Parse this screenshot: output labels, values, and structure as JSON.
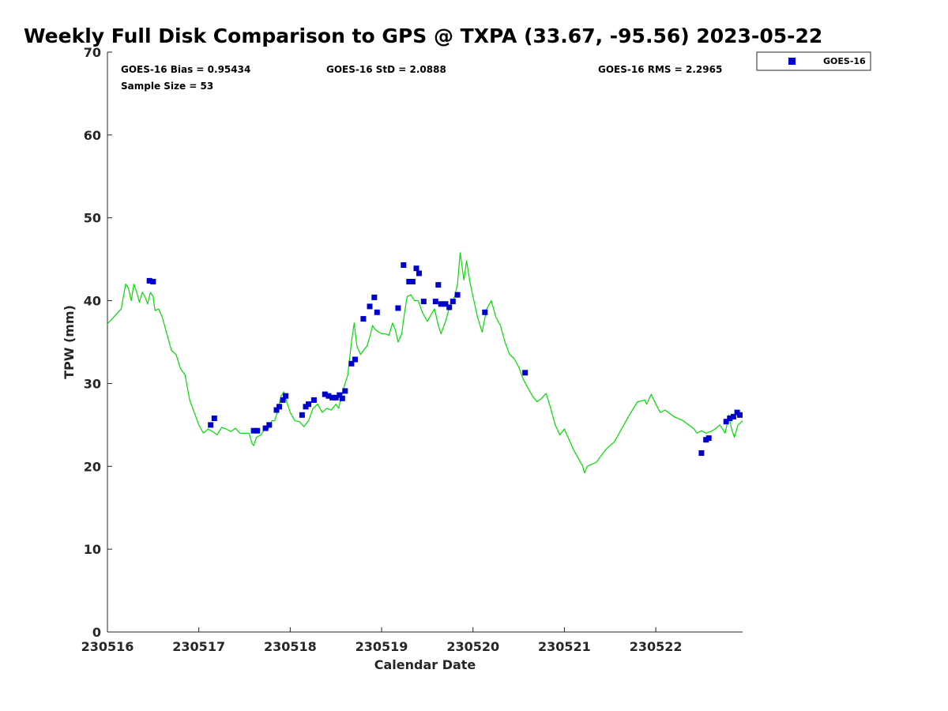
{
  "chart_data": {
    "type": "line",
    "title": "Weekly Full Disk Comparison to GPS @ TXPA (33.67, -95.56) 2023-05-22",
    "xlabel": "Calendar Date",
    "ylabel": "TPW (mm)",
    "xlim": [
      0,
      6.95
    ],
    "ylim": [
      0,
      70
    ],
    "x_ticks": [
      0,
      1,
      2,
      3,
      4,
      5,
      6
    ],
    "x_tick_labels": [
      "230516",
      "230517",
      "230518",
      "230519",
      "230520",
      "230521",
      "230522"
    ],
    "y_ticks": [
      0,
      10,
      20,
      30,
      40,
      50,
      60,
      70
    ],
    "grid": false,
    "legend_position": "top-right, outside axes",
    "stats": {
      "bias": "GOES-16 Bias = 0.95434",
      "std": "GOES-16 StD = 2.0888",
      "rms": "GOES-16 RMS = 2.2965",
      "sample": "Sample Size = 53"
    },
    "series": [
      {
        "kind": "line",
        "color": "#00dd00",
        "points": [
          [
            0,
            37.2
          ],
          [
            0.05,
            37.8
          ],
          [
            0.1,
            38.4
          ],
          [
            0.15,
            39
          ],
          [
            0.2,
            42
          ],
          [
            0.23,
            41.5
          ],
          [
            0.26,
            40
          ],
          [
            0.29,
            42
          ],
          [
            0.32,
            41
          ],
          [
            0.35,
            39.8
          ],
          [
            0.38,
            41
          ],
          [
            0.41,
            40.5
          ],
          [
            0.44,
            39.6
          ],
          [
            0.47,
            41
          ],
          [
            0.5,
            40.5
          ],
          [
            0.52,
            38.8
          ],
          [
            0.56,
            39
          ],
          [
            0.6,
            38
          ],
          [
            0.65,
            36
          ],
          [
            0.7,
            34
          ],
          [
            0.75,
            33.5
          ],
          [
            0.8,
            31.8
          ],
          [
            0.85,
            31
          ],
          [
            0.9,
            28
          ],
          [
            0.95,
            26.5
          ],
          [
            1.0,
            25
          ],
          [
            1.05,
            24
          ],
          [
            1.1,
            24.5
          ],
          [
            1.15,
            24.2
          ],
          [
            1.2,
            23.8
          ],
          [
            1.25,
            24.7
          ],
          [
            1.3,
            24.5
          ],
          [
            1.35,
            24.2
          ],
          [
            1.4,
            24.6
          ],
          [
            1.45,
            24
          ],
          [
            1.5,
            24
          ],
          [
            1.55,
            24
          ],
          [
            1.58,
            22.8
          ],
          [
            1.6,
            22.5
          ],
          [
            1.63,
            23.5
          ],
          [
            1.68,
            23.8
          ],
          [
            1.72,
            24.5
          ],
          [
            1.76,
            24.5
          ],
          [
            1.8,
            25.5
          ],
          [
            1.83,
            25.5
          ],
          [
            1.87,
            27
          ],
          [
            1.9,
            28.5
          ],
          [
            1.93,
            29
          ],
          [
            1.97,
            27.5
          ],
          [
            2.0,
            26.5
          ],
          [
            2.05,
            25.5
          ],
          [
            2.1,
            25.4
          ],
          [
            2.15,
            24.8
          ],
          [
            2.2,
            25.5
          ],
          [
            2.25,
            27
          ],
          [
            2.3,
            27.5
          ],
          [
            2.35,
            26.5
          ],
          [
            2.4,
            27
          ],
          [
            2.45,
            26.8
          ],
          [
            2.5,
            27.5
          ],
          [
            2.53,
            27
          ],
          [
            2.56,
            28.5
          ],
          [
            2.6,
            30
          ],
          [
            2.63,
            31
          ],
          [
            2.67,
            35
          ],
          [
            2.7,
            37.3
          ],
          [
            2.73,
            34.5
          ],
          [
            2.77,
            33.5
          ],
          [
            2.8,
            34
          ],
          [
            2.84,
            34.5
          ],
          [
            2.88,
            36
          ],
          [
            2.9,
            37
          ],
          [
            2.93,
            36.5
          ],
          [
            2.97,
            36.2
          ],
          [
            3.0,
            36
          ],
          [
            3.04,
            36
          ],
          [
            3.08,
            35.8
          ],
          [
            3.12,
            37.3
          ],
          [
            3.15,
            36.5
          ],
          [
            3.18,
            35
          ],
          [
            3.22,
            36
          ],
          [
            3.25,
            38.5
          ],
          [
            3.28,
            40.5
          ],
          [
            3.32,
            40.7
          ],
          [
            3.36,
            40
          ],
          [
            3.4,
            40
          ],
          [
            3.45,
            38.5
          ],
          [
            3.5,
            37.5
          ],
          [
            3.55,
            38.5
          ],
          [
            3.58,
            39
          ],
          [
            3.62,
            37
          ],
          [
            3.65,
            36
          ],
          [
            3.7,
            37.5
          ],
          [
            3.75,
            39.5
          ],
          [
            3.8,
            40.5
          ],
          [
            3.83,
            42
          ],
          [
            3.86,
            45.8
          ],
          [
            3.9,
            42.5
          ],
          [
            3.93,
            44.8
          ],
          [
            3.97,
            42
          ],
          [
            4.0,
            40.5
          ],
          [
            4.05,
            38
          ],
          [
            4.1,
            36.2
          ],
          [
            4.15,
            39
          ],
          [
            4.2,
            40
          ],
          [
            4.25,
            38
          ],
          [
            4.3,
            37
          ],
          [
            4.35,
            35
          ],
          [
            4.4,
            33.5
          ],
          [
            4.45,
            33
          ],
          [
            4.5,
            32
          ],
          [
            4.55,
            30.5
          ],
          [
            4.6,
            29.5
          ],
          [
            4.65,
            28.5
          ],
          [
            4.7,
            27.8
          ],
          [
            4.75,
            28.2
          ],
          [
            4.8,
            28.8
          ],
          [
            4.85,
            27
          ],
          [
            4.9,
            25
          ],
          [
            4.95,
            23.8
          ],
          [
            5.0,
            24.5
          ],
          [
            5.1,
            22
          ],
          [
            5.2,
            20
          ],
          [
            5.22,
            19.2
          ],
          [
            5.25,
            20
          ],
          [
            5.35,
            20.5
          ],
          [
            5.45,
            22
          ],
          [
            5.55,
            23
          ],
          [
            5.6,
            24
          ],
          [
            5.7,
            26
          ],
          [
            5.8,
            27.8
          ],
          [
            5.88,
            28
          ],
          [
            5.9,
            27.5
          ],
          [
            5.95,
            28.7
          ],
          [
            6.0,
            27.5
          ],
          [
            6.05,
            26.5
          ],
          [
            6.1,
            26.8
          ],
          [
            6.2,
            26
          ],
          [
            6.3,
            25.5
          ],
          [
            6.42,
            24.5
          ],
          [
            6.45,
            24
          ],
          [
            6.5,
            24.3
          ],
          [
            6.55,
            24
          ],
          [
            6.6,
            24.2
          ],
          [
            6.65,
            24.5
          ],
          [
            6.7,
            25
          ],
          [
            6.73,
            24.5
          ],
          [
            6.76,
            24
          ],
          [
            6.8,
            26.2
          ],
          [
            6.83,
            24.5
          ],
          [
            6.86,
            23.5
          ],
          [
            6.9,
            25
          ],
          [
            6.95,
            25.5
          ]
        ]
      },
      {
        "name": "GOES-16",
        "kind": "scatter",
        "color": "#0000cc",
        "points": [
          [
            0.46,
            42.4
          ],
          [
            0.5,
            42.3
          ],
          [
            1.13,
            25
          ],
          [
            1.17,
            25.8
          ],
          [
            1.6,
            24.3
          ],
          [
            1.64,
            24.3
          ],
          [
            1.73,
            24.6
          ],
          [
            1.77,
            25
          ],
          [
            1.85,
            26.8
          ],
          [
            1.88,
            27.2
          ],
          [
            1.92,
            28
          ],
          [
            1.95,
            28.5
          ],
          [
            2.13,
            26.2
          ],
          [
            2.17,
            27.2
          ],
          [
            2.2,
            27.5
          ],
          [
            2.26,
            28
          ],
          [
            2.38,
            28.7
          ],
          [
            2.42,
            28.5
          ],
          [
            2.46,
            28.3
          ],
          [
            2.5,
            28.3
          ],
          [
            2.54,
            28.6
          ],
          [
            2.57,
            28.2
          ],
          [
            2.6,
            29.1
          ],
          [
            2.67,
            32.4
          ],
          [
            2.71,
            32.9
          ],
          [
            2.8,
            37.8
          ],
          [
            2.87,
            39.3
          ],
          [
            2.92,
            40.4
          ],
          [
            2.95,
            38.6
          ],
          [
            3.18,
            39.1
          ],
          [
            3.24,
            44.3
          ],
          [
            3.3,
            42.3
          ],
          [
            3.34,
            42.3
          ],
          [
            3.38,
            43.9
          ],
          [
            3.41,
            43.3
          ],
          [
            3.46,
            39.9
          ],
          [
            3.59,
            39.9
          ],
          [
            3.62,
            41.9
          ],
          [
            3.65,
            39.6
          ],
          [
            3.7,
            39.6
          ],
          [
            3.74,
            39.2
          ],
          [
            3.78,
            39.9
          ],
          [
            3.83,
            40.7
          ],
          [
            4.13,
            38.6
          ],
          [
            4.57,
            31.3
          ],
          [
            6.5,
            21.6
          ],
          [
            6.55,
            23.2
          ],
          [
            6.58,
            23.4
          ],
          [
            6.77,
            25.4
          ],
          [
            6.81,
            25.8
          ],
          [
            6.85,
            26
          ],
          [
            6.89,
            26.5
          ],
          [
            6.92,
            26.2
          ]
        ]
      }
    ]
  }
}
